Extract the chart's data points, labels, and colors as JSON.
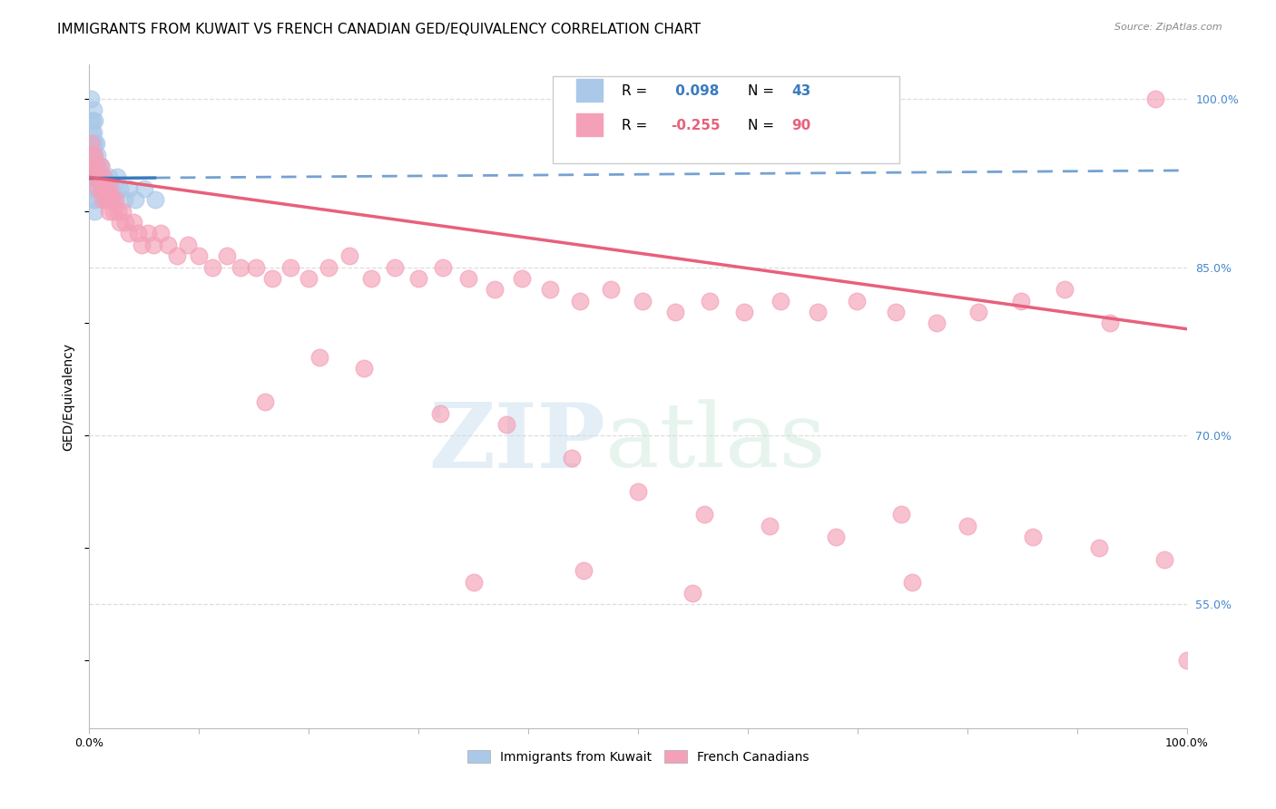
{
  "title": "IMMIGRANTS FROM KUWAIT VS FRENCH CANADIAN GED/EQUIVALENCY CORRELATION CHART",
  "source": "Source: ZipAtlas.com",
  "ylabel": "GED/Equivalency",
  "xlim": [
    0.0,
    1.0
  ],
  "ylim": [
    0.44,
    1.03
  ],
  "x_ticks": [
    0.0,
    0.1,
    0.2,
    0.3,
    0.4,
    0.5,
    0.6,
    0.7,
    0.8,
    0.9,
    1.0
  ],
  "x_tick_labels": [
    "0.0%",
    "",
    "",
    "",
    "",
    "",
    "",
    "",
    "",
    "",
    "100.0%"
  ],
  "y_tick_labels_right": [
    "100.0%",
    "85.0%",
    "70.0%",
    "55.0%"
  ],
  "y_ticks_right": [
    1.0,
    0.85,
    0.7,
    0.55
  ],
  "r_kuwait": 0.098,
  "n_kuwait": 43,
  "r_french": -0.255,
  "n_french": 90,
  "kuwait_color": "#aac8e8",
  "french_color": "#f4a0b8",
  "kuwait_line_color": "#3a7abf",
  "french_line_color": "#e8607a",
  "kuwait_x": [
    0.001,
    0.001,
    0.002,
    0.002,
    0.002,
    0.003,
    0.003,
    0.003,
    0.003,
    0.004,
    0.004,
    0.004,
    0.004,
    0.004,
    0.005,
    0.005,
    0.005,
    0.005,
    0.005,
    0.006,
    0.006,
    0.006,
    0.006,
    0.007,
    0.007,
    0.008,
    0.008,
    0.009,
    0.01,
    0.011,
    0.012,
    0.014,
    0.016,
    0.018,
    0.02,
    0.022,
    0.025,
    0.028,
    0.032,
    0.036,
    0.042,
    0.05,
    0.06
  ],
  "kuwait_y": [
    1.0,
    0.98,
    0.97,
    0.96,
    0.94,
    0.98,
    0.96,
    0.95,
    0.93,
    0.99,
    0.97,
    0.95,
    0.93,
    0.91,
    0.98,
    0.96,
    0.94,
    0.92,
    0.9,
    0.96,
    0.94,
    0.93,
    0.91,
    0.95,
    0.93,
    0.94,
    0.92,
    0.93,
    0.94,
    0.92,
    0.93,
    0.91,
    0.92,
    0.93,
    0.92,
    0.91,
    0.93,
    0.92,
    0.91,
    0.92,
    0.91,
    0.92,
    0.91
  ],
  "french_x": [
    0.001,
    0.002,
    0.003,
    0.004,
    0.005,
    0.006,
    0.007,
    0.008,
    0.009,
    0.01,
    0.011,
    0.012,
    0.013,
    0.014,
    0.015,
    0.016,
    0.017,
    0.018,
    0.019,
    0.02,
    0.022,
    0.024,
    0.026,
    0.028,
    0.03,
    0.033,
    0.036,
    0.04,
    0.044,
    0.048,
    0.053,
    0.058,
    0.065,
    0.072,
    0.08,
    0.09,
    0.1,
    0.112,
    0.125,
    0.138,
    0.152,
    0.167,
    0.183,
    0.2,
    0.218,
    0.237,
    0.257,
    0.278,
    0.3,
    0.322,
    0.345,
    0.369,
    0.394,
    0.42,
    0.447,
    0.475,
    0.504,
    0.534,
    0.565,
    0.597,
    0.63,
    0.664,
    0.699,
    0.735,
    0.772,
    0.81,
    0.849,
    0.889,
    0.93,
    0.971,
    0.21,
    0.25,
    0.16,
    0.32,
    0.38,
    0.44,
    0.5,
    0.56,
    0.62,
    0.68,
    0.74,
    0.8,
    0.86,
    0.92,
    0.98,
    0.75,
    0.55,
    0.45,
    0.35,
    1.0
  ],
  "french_y": [
    0.96,
    0.95,
    0.94,
    0.93,
    0.95,
    0.94,
    0.93,
    0.92,
    0.93,
    0.94,
    0.92,
    0.91,
    0.93,
    0.92,
    0.91,
    0.92,
    0.91,
    0.9,
    0.92,
    0.91,
    0.9,
    0.91,
    0.9,
    0.89,
    0.9,
    0.89,
    0.88,
    0.89,
    0.88,
    0.87,
    0.88,
    0.87,
    0.88,
    0.87,
    0.86,
    0.87,
    0.86,
    0.85,
    0.86,
    0.85,
    0.85,
    0.84,
    0.85,
    0.84,
    0.85,
    0.86,
    0.84,
    0.85,
    0.84,
    0.85,
    0.84,
    0.83,
    0.84,
    0.83,
    0.82,
    0.83,
    0.82,
    0.81,
    0.82,
    0.81,
    0.82,
    0.81,
    0.82,
    0.81,
    0.8,
    0.81,
    0.82,
    0.83,
    0.8,
    1.0,
    0.77,
    0.76,
    0.73,
    0.72,
    0.71,
    0.68,
    0.65,
    0.63,
    0.62,
    0.61,
    0.63,
    0.62,
    0.61,
    0.6,
    0.59,
    0.57,
    0.56,
    0.58,
    0.57,
    0.5
  ],
  "kuwait_trend": [
    0.929,
    0.936
  ],
  "french_trend": [
    0.93,
    0.795
  ],
  "background_color": "#ffffff",
  "grid_color": "#dddddd",
  "title_fontsize": 11,
  "axis_label_fontsize": 10,
  "tick_fontsize": 9,
  "legend_fontsize": 11
}
